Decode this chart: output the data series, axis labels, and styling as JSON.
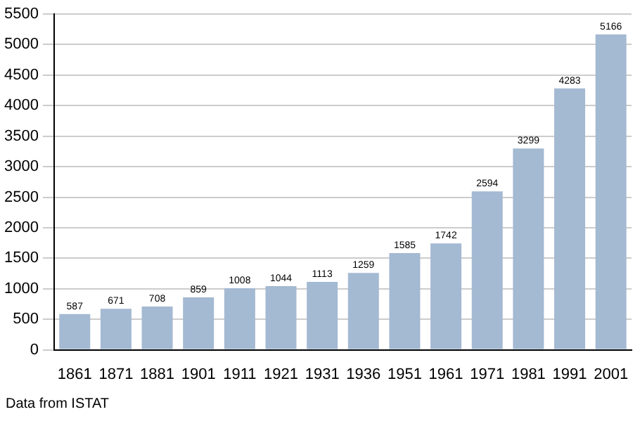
{
  "chart_data": {
    "type": "bar",
    "categories": [
      "1861",
      "1871",
      "1881",
      "1901",
      "1911",
      "1921",
      "1931",
      "1936",
      "1951",
      "1961",
      "1971",
      "1981",
      "1991",
      "2001"
    ],
    "values": [
      587,
      671,
      708,
      859,
      1008,
      1044,
      1113,
      1259,
      1585,
      1742,
      2594,
      3299,
      4283,
      5166
    ],
    "color": "#a4b9d2",
    "ylim": [
      0,
      5500
    ],
    "yticks": [
      0,
      500,
      1000,
      1500,
      2000,
      2500,
      3000,
      3500,
      4000,
      4500,
      5000,
      5500
    ],
    "grid": "y",
    "data_labels": true,
    "annotations": [
      "Data from ISTAT"
    ]
  }
}
